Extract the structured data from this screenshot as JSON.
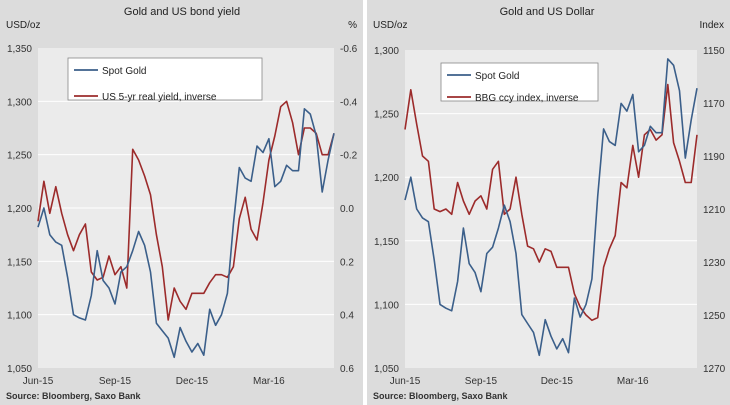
{
  "colors": {
    "panel_bg": "#dcdcdc",
    "plot_bg": "#ebebeb",
    "grid": "#ffffff",
    "gold": "#3b5f8a",
    "other": "#9c2b2b",
    "divider": "#ffffff"
  },
  "chart_data": [
    {
      "type": "line",
      "title": "Gold and US bond yield",
      "source": "Source: Bloomberg, Saxo Bank",
      "left_axis": {
        "label": "USD/oz",
        "min": 1050,
        "max": 1350,
        "ticks": [
          "1,050",
          "1,100",
          "1,150",
          "1,200",
          "1,250",
          "1,300",
          "1,350"
        ]
      },
      "right_axis": {
        "label": "%",
        "inverted": true,
        "min": -0.6,
        "max": 0.6,
        "ticks": [
          "0.6",
          "0.4",
          "0.2",
          "0.0",
          "-0.2",
          "-0.4",
          "-0.6"
        ]
      },
      "x_ticks": [
        "Jun-15",
        "Sep-15",
        "Dec-15",
        "Mar-16"
      ],
      "x_tick_positions": [
        0,
        13,
        26,
        39
      ],
      "legend": [
        "Spot Gold",
        "US 5-yr real yield, inverse"
      ],
      "series": [
        {
          "name": "Spot Gold",
          "axis": "left",
          "values": [
            1182,
            1200,
            1175,
            1168,
            1165,
            1135,
            1100,
            1097,
            1095,
            1118,
            1160,
            1132,
            1125,
            1110,
            1140,
            1145,
            1160,
            1178,
            1165,
            1140,
            1092,
            1085,
            1078,
            1060,
            1088,
            1075,
            1065,
            1073,
            1062,
            1105,
            1090,
            1100,
            1120,
            1185,
            1238,
            1228,
            1225,
            1258,
            1252,
            1265,
            1220,
            1225,
            1240,
            1235,
            1235,
            1293,
            1288,
            1268,
            1215,
            1245,
            1270
          ]
        },
        {
          "name": "US 5-yr real yield, inverse",
          "axis": "right",
          "values": [
            0.05,
            -0.1,
            0.02,
            -0.08,
            0.02,
            0.1,
            0.16,
            0.1,
            0.06,
            0.24,
            0.27,
            0.26,
            0.18,
            0.25,
            0.22,
            0.3,
            -0.22,
            -0.18,
            -0.12,
            -0.05,
            0.1,
            0.22,
            0.42,
            0.3,
            0.35,
            0.38,
            0.32,
            0.32,
            0.32,
            0.28,
            0.25,
            0.25,
            0.26,
            0.22,
            0.04,
            -0.04,
            0.08,
            0.12,
            -0.02,
            -0.18,
            -0.27,
            -0.38,
            -0.4,
            -0.32,
            -0.2,
            -0.3,
            -0.3,
            -0.28,
            -0.2,
            -0.2,
            -0.28
          ]
        }
      ]
    },
    {
      "type": "line",
      "title": "Gold and US Dollar",
      "source": "Source: Bloomberg, Saxo Bank",
      "left_axis": {
        "label": "USD/oz",
        "min": 1050,
        "max": 1300,
        "ticks": [
          "1,050",
          "1,100",
          "1,150",
          "1,200",
          "1,250",
          "1,300"
        ]
      },
      "right_axis": {
        "label": "Index",
        "inverted": true,
        "min": 1150,
        "max": 1270,
        "ticks": [
          "1270",
          "1250",
          "1230",
          "1210",
          "1190",
          "1170",
          "1150"
        ]
      },
      "x_ticks": [
        "Jun-15",
        "Sep-15",
        "Dec-15",
        "Mar-16"
      ],
      "x_tick_positions": [
        0,
        13,
        26,
        39
      ],
      "legend": [
        "Spot Gold",
        "BBG ccy index, inverse"
      ],
      "series": [
        {
          "name": "Spot Gold",
          "axis": "left",
          "values": [
            1182,
            1200,
            1175,
            1168,
            1165,
            1135,
            1100,
            1097,
            1095,
            1118,
            1160,
            1132,
            1125,
            1110,
            1140,
            1145,
            1160,
            1178,
            1165,
            1140,
            1092,
            1085,
            1078,
            1060,
            1088,
            1075,
            1065,
            1073,
            1062,
            1105,
            1090,
            1100,
            1120,
            1185,
            1238,
            1228,
            1225,
            1258,
            1252,
            1265,
            1220,
            1225,
            1240,
            1235,
            1235,
            1293,
            1288,
            1268,
            1215,
            1245,
            1270
          ]
        },
        {
          "name": "BBG ccy index, inverse",
          "axis": "right",
          "values": [
            1180,
            1165,
            1178,
            1190,
            1192,
            1210,
            1211,
            1210,
            1212,
            1200,
            1207,
            1212,
            1207,
            1205,
            1210,
            1195,
            1192,
            1212,
            1210,
            1198,
            1212,
            1224,
            1225,
            1230,
            1225,
            1226,
            1232,
            1232,
            1232,
            1242,
            1247,
            1250,
            1252,
            1251,
            1232,
            1225,
            1220,
            1200,
            1202,
            1186,
            1198,
            1182,
            1180,
            1184,
            1182,
            1163,
            1185,
            1192,
            1200,
            1200,
            1182
          ]
        }
      ]
    }
  ]
}
